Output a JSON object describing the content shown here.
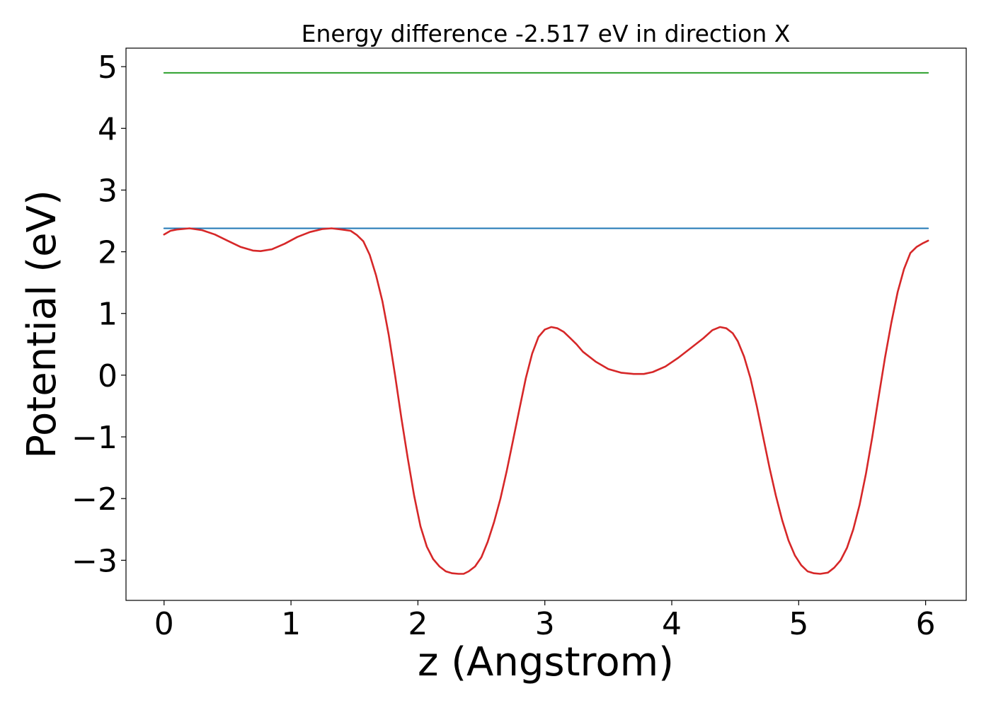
{
  "chart_data": {
    "type": "line",
    "title": "Energy difference -2.517 eV in direction X",
    "xlabel": "z (Angstrom)",
    "ylabel": "Potential (eV)",
    "xlim": [
      -0.3,
      6.32
    ],
    "ylim": [
      -3.65,
      5.3
    ],
    "xticks": [
      0,
      1,
      2,
      3,
      4,
      5,
      6
    ],
    "yticks": [
      -3,
      -2,
      -1,
      0,
      1,
      2,
      3,
      4,
      5
    ],
    "grid": false,
    "series": [
      {
        "color": "#2ca02c",
        "x": [
          0,
          6.02
        ],
        "y": [
          4.9,
          4.9
        ]
      },
      {
        "color": "#1f77b4",
        "x": [
          0,
          6.02
        ],
        "y": [
          2.38,
          2.38
        ]
      },
      {
        "color": "#d62728",
        "x": [
          0,
          0.05,
          0.1,
          0.2,
          0.3,
          0.4,
          0.5,
          0.6,
          0.7,
          0.76,
          0.85,
          0.95,
          1.05,
          1.15,
          1.25,
          1.32,
          1.4,
          1.47,
          1.52,
          1.57,
          1.62,
          1.67,
          1.72,
          1.77,
          1.82,
          1.87,
          1.92,
          1.97,
          2.02,
          2.07,
          2.12,
          2.17,
          2.22,
          2.27,
          2.32,
          2.36,
          2.4,
          2.45,
          2.5,
          2.55,
          2.6,
          2.65,
          2.7,
          2.75,
          2.8,
          2.85,
          2.9,
          2.95,
          3.0,
          3.05,
          3.1,
          3.15,
          3.2,
          3.25,
          3.3,
          3.4,
          3.5,
          3.6,
          3.7,
          3.78,
          3.85,
          3.95,
          4.05,
          4.15,
          4.25,
          4.32,
          4.38,
          4.43,
          4.48,
          4.52,
          4.57,
          4.62,
          4.67,
          4.72,
          4.77,
          4.82,
          4.87,
          4.92,
          4.97,
          5.02,
          5.07,
          5.12,
          5.17,
          5.23,
          5.28,
          5.33,
          5.38,
          5.43,
          5.48,
          5.53,
          5.58,
          5.63,
          5.68,
          5.73,
          5.78,
          5.83,
          5.88,
          5.93,
          5.98,
          6.02
        ],
        "y": [
          2.28,
          2.34,
          2.36,
          2.38,
          2.35,
          2.28,
          2.18,
          2.08,
          2.02,
          2.01,
          2.04,
          2.13,
          2.24,
          2.32,
          2.37,
          2.38,
          2.36,
          2.34,
          2.27,
          2.17,
          1.95,
          1.62,
          1.2,
          0.65,
          0.0,
          -0.7,
          -1.35,
          -1.95,
          -2.45,
          -2.78,
          -2.98,
          -3.1,
          -3.18,
          -3.21,
          -3.22,
          -3.22,
          -3.18,
          -3.1,
          -2.95,
          -2.7,
          -2.38,
          -2.0,
          -1.55,
          -1.05,
          -0.55,
          -0.05,
          0.35,
          0.62,
          0.74,
          0.78,
          0.76,
          0.7,
          0.6,
          0.5,
          0.38,
          0.22,
          0.1,
          0.04,
          0.02,
          0.02,
          0.05,
          0.14,
          0.28,
          0.44,
          0.6,
          0.73,
          0.78,
          0.76,
          0.68,
          0.55,
          0.3,
          -0.05,
          -0.5,
          -1.0,
          -1.5,
          -1.95,
          -2.35,
          -2.68,
          -2.92,
          -3.08,
          -3.18,
          -3.21,
          -3.22,
          -3.2,
          -3.12,
          -3.0,
          -2.8,
          -2.5,
          -2.1,
          -1.6,
          -1.0,
          -0.35,
          0.28,
          0.85,
          1.35,
          1.72,
          1.98,
          2.08,
          2.14,
          2.18
        ]
      }
    ]
  }
}
